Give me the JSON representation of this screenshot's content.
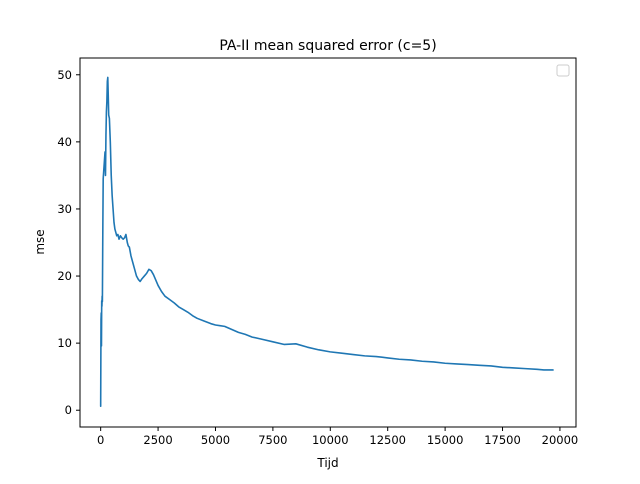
{
  "chart_data": {
    "type": "line",
    "title": "PA-II mean squared error (c=5)",
    "xlabel": "Tijd",
    "ylabel": "mse",
    "xlim": [
      -900,
      20700
    ],
    "ylim": [
      -2.5,
      52.5
    ],
    "xticks": [
      0,
      2500,
      5000,
      7500,
      10000,
      12500,
      15000,
      17500,
      20000
    ],
    "xtick_labels": [
      "0",
      "2500",
      "5000",
      "7500",
      "10000",
      "12500",
      "15000",
      "17500",
      "20000"
    ],
    "yticks": [
      0,
      10,
      20,
      30,
      40,
      50
    ],
    "ytick_labels": [
      "0",
      "10",
      "20",
      "30",
      "40",
      "50"
    ],
    "grid": false,
    "legend": {
      "placement": "top-right",
      "entries": []
    },
    "series": [
      {
        "color": "#1f77b4",
        "x": [
          0,
          15,
          25,
          35,
          45,
          55,
          65,
          75,
          85,
          95,
          110,
          130,
          160,
          190,
          210,
          230,
          250,
          270,
          290,
          310,
          330,
          350,
          380,
          420,
          460,
          500,
          540,
          580,
          620,
          660,
          700,
          750,
          800,
          860,
          920,
          980,
          1040,
          1100,
          1160,
          1200,
          1250,
          1320,
          1400,
          1480,
          1560,
          1640,
          1720,
          1800,
          1900,
          2000,
          2100,
          2200,
          2300,
          2400,
          2500,
          2650,
          2800,
          3000,
          3200,
          3400,
          3600,
          3800,
          4000,
          4200,
          4500,
          4800,
          5000,
          5200,
          5400,
          5600,
          5800,
          6000,
          6300,
          6600,
          7000,
          7500,
          8000,
          8500,
          9000,
          9500,
          10000,
          10500,
          11000,
          11500,
          12000,
          12500,
          13000,
          13500,
          14000,
          14500,
          15000,
          15500,
          16000,
          16500,
          17000,
          17500,
          18000,
          18500,
          19000,
          19300,
          19700
        ],
        "y": [
          0.6,
          13.5,
          14.5,
          9.6,
          16.3,
          15.5,
          17.0,
          16.2,
          22.0,
          27.5,
          34.5,
          35.5,
          37.0,
          38.5,
          35.0,
          41.0,
          44.5,
          46.0,
          49.0,
          49.6,
          47.0,
          44.0,
          43.5,
          40.0,
          35.0,
          32.0,
          30.0,
          28.0,
          27.0,
          26.5,
          26.0,
          26.2,
          25.5,
          26.0,
          25.7,
          25.5,
          25.7,
          26.2,
          25.0,
          24.5,
          24.3,
          23.0,
          22.0,
          21.0,
          20.0,
          19.5,
          19.2,
          19.6,
          20.0,
          20.4,
          21.0,
          20.8,
          20.2,
          19.4,
          18.6,
          17.7,
          17.0,
          16.5,
          16.0,
          15.4,
          15.0,
          14.6,
          14.1,
          13.7,
          13.3,
          12.9,
          12.7,
          12.6,
          12.5,
          12.2,
          11.9,
          11.6,
          11.3,
          10.9,
          10.6,
          10.2,
          9.8,
          9.9,
          9.4,
          9.0,
          8.7,
          8.5,
          8.3,
          8.1,
          8.0,
          7.8,
          7.6,
          7.5,
          7.3,
          7.2,
          7.0,
          6.9,
          6.8,
          6.7,
          6.6,
          6.4,
          6.3,
          6.2,
          6.1,
          6.0,
          6.0
        ]
      }
    ]
  }
}
